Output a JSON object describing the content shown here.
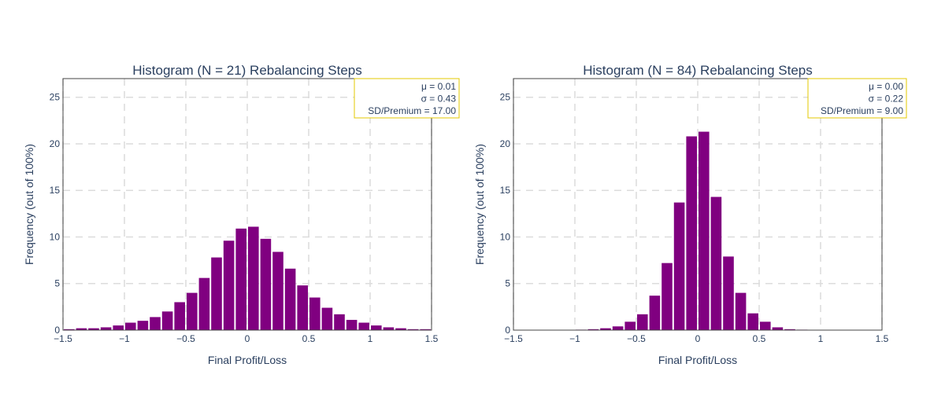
{
  "chart_data": [
    {
      "type": "bar",
      "title": "Histogram (N = 21) Rebalancing Steps",
      "xlabel": "Final Profit/Loss",
      "ylabel": "Frequency (out of 100%)",
      "xlim": [
        -1.5,
        1.5
      ],
      "ylim": [
        0,
        27
      ],
      "xticks": [
        -1.5,
        -1,
        -0.5,
        0,
        0.5,
        1,
        1.5
      ],
      "xtick_labels": [
        "−1.5",
        "−1",
        "−0.5",
        "0",
        "0.5",
        "1",
        "1.5"
      ],
      "yticks": [
        0,
        5,
        10,
        15,
        20,
        25
      ],
      "ytick_labels": [
        "0",
        "5",
        "10",
        "15",
        "20",
        "25"
      ],
      "grid": true,
      "bar_color": "#800080",
      "bin_width": 0.1,
      "x": [
        -1.45,
        -1.35,
        -1.25,
        -1.15,
        -1.05,
        -0.95,
        -0.85,
        -0.75,
        -0.65,
        -0.55,
        -0.45,
        -0.35,
        -0.25,
        -0.15,
        -0.05,
        0.05,
        0.15,
        0.25,
        0.35,
        0.45,
        0.55,
        0.65,
        0.75,
        0.85,
        0.95,
        1.05,
        1.15,
        1.25,
        1.35,
        1.45
      ],
      "values": [
        0.1,
        0.2,
        0.2,
        0.3,
        0.5,
        0.8,
        1.0,
        1.4,
        2.0,
        3.0,
        4.0,
        5.6,
        7.8,
        9.6,
        10.9,
        11.1,
        9.8,
        8.4,
        6.6,
        4.8,
        3.5,
        2.4,
        1.7,
        1.1,
        0.8,
        0.5,
        0.3,
        0.2,
        0.1,
        0.1
      ],
      "stats": {
        "mu": "μ = 0.01",
        "sigma": "σ = 0.43",
        "sd_premium": "SD/Premium = 17.00",
        "border_color": "#e3c800"
      }
    },
    {
      "type": "bar",
      "title": "Histogram (N = 84) Rebalancing Steps",
      "xlabel": "Final Profit/Loss",
      "ylabel": "Frequency (out of 100%)",
      "xlim": [
        -1.5,
        1.5
      ],
      "ylim": [
        0,
        27
      ],
      "xticks": [
        -1.5,
        -1,
        -0.5,
        0,
        0.5,
        1,
        1.5
      ],
      "xtick_labels": [
        "−1.5",
        "−1",
        "−0.5",
        "0",
        "0.5",
        "1",
        "1.5"
      ],
      "yticks": [
        0,
        5,
        10,
        15,
        20,
        25
      ],
      "ytick_labels": [
        "0",
        "5",
        "10",
        "15",
        "20",
        "25"
      ],
      "grid": true,
      "bar_color": "#800080",
      "bin_width": 0.1,
      "x": [
        -1.45,
        -1.35,
        -1.25,
        -1.15,
        -1.05,
        -0.95,
        -0.85,
        -0.75,
        -0.65,
        -0.55,
        -0.45,
        -0.35,
        -0.25,
        -0.15,
        -0.05,
        0.05,
        0.15,
        0.25,
        0.35,
        0.45,
        0.55,
        0.65,
        0.75,
        0.85,
        0.95,
        1.05,
        1.15,
        1.25,
        1.35,
        1.45
      ],
      "values": [
        0,
        0,
        0,
        0,
        0,
        0.05,
        0.1,
        0.2,
        0.4,
        0.9,
        1.7,
        3.7,
        7.2,
        13.7,
        20.8,
        21.3,
        14.3,
        7.9,
        4.0,
        1.8,
        0.9,
        0.3,
        0.1,
        0.05,
        0,
        0,
        0,
        0,
        0,
        0
      ],
      "stats": {
        "mu": "μ = 0.00",
        "sigma": "σ = 0.22",
        "sd_premium": "SD/Premium = 9.00",
        "border_color": "#e3c800"
      }
    }
  ]
}
